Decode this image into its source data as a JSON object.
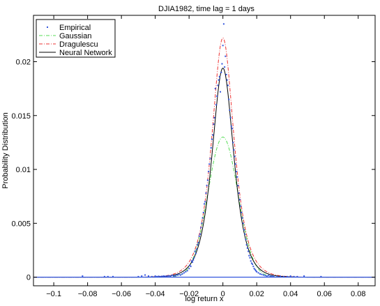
{
  "chart_data": {
    "type": "line",
    "title": "DJIA1982, time lag = 1 days",
    "xlabel": "log return x",
    "ylabel": "Probability Distribution",
    "xlim": [
      -0.112,
      0.09
    ],
    "ylim": [
      -0.0008,
      0.0243
    ],
    "x_ticks": [
      -0.1,
      -0.08,
      -0.06,
      -0.04,
      -0.02,
      0,
      0.02,
      0.04,
      0.06,
      0.08
    ],
    "x_tick_labels": [
      "−0.1",
      "−0.08",
      "−0.06",
      "−0.04",
      "−0.02",
      "0",
      "0.02",
      "0.04",
      "0.06",
      "0.08"
    ],
    "y_ticks": [
      0,
      0.005,
      0.01,
      0.015,
      0.02
    ],
    "y_tick_labels": [
      "0",
      "0.005",
      "0.01",
      "0.015",
      "0.02"
    ],
    "grid": false,
    "legend_position": "top-left",
    "series": [
      {
        "name": "Empirical",
        "style": "markers",
        "color": "#3355dd",
        "points": [
          [
            -0.0045,
            0.0175
          ],
          [
            -0.004,
            0.016
          ],
          [
            -0.0035,
            0.0168
          ],
          [
            -0.003,
            0.0178
          ],
          [
            -0.0025,
            0.0183
          ],
          [
            -0.002,
            0.0186
          ],
          [
            -0.0015,
            0.0172
          ],
          [
            -0.001,
            0.019
          ],
          [
            -0.0005,
            0.0198
          ],
          [
            0.0,
            0.0215
          ],
          [
            0.0005,
            0.0235
          ],
          [
            0.001,
            0.0195
          ],
          [
            0.0015,
            0.0205
          ],
          [
            0.002,
            0.0188
          ],
          [
            0.0025,
            0.0183
          ],
          [
            0.003,
            0.0178
          ],
          [
            0.0035,
            0.0165
          ],
          [
            0.004,
            0.0155
          ],
          [
            0.0045,
            0.0148
          ],
          [
            0.005,
            0.014
          ],
          [
            -0.005,
            0.0148
          ],
          [
            -0.0055,
            0.0142
          ],
          [
            -0.006,
            0.0132
          ],
          [
            -0.0065,
            0.0128
          ],
          [
            -0.007,
            0.012
          ],
          [
            -0.0075,
            0.011
          ],
          [
            -0.008,
            0.0105
          ],
          [
            -0.0085,
            0.0098
          ],
          [
            -0.009,
            0.009
          ],
          [
            -0.0095,
            0.0085
          ],
          [
            -0.01,
            0.0078
          ],
          [
            -0.0105,
            0.007
          ],
          [
            -0.011,
            0.0068
          ],
          [
            -0.0115,
            0.006
          ],
          [
            -0.012,
            0.0055
          ],
          [
            -0.0125,
            0.005
          ],
          [
            -0.013,
            0.0046
          ],
          [
            -0.0135,
            0.004
          ],
          [
            -0.014,
            0.0038
          ],
          [
            -0.0145,
            0.0032
          ],
          [
            -0.015,
            0.003
          ],
          [
            -0.0155,
            0.0026
          ],
          [
            -0.016,
            0.0022
          ],
          [
            -0.0165,
            0.0024
          ],
          [
            -0.017,
            0.0018
          ],
          [
            -0.0175,
            0.0016
          ],
          [
            -0.018,
            0.0014
          ],
          [
            -0.0185,
            0.0015
          ],
          [
            -0.019,
            0.001
          ],
          [
            -0.0195,
            0.0011
          ],
          [
            -0.02,
            0.0008
          ],
          [
            -0.021,
            0.0006
          ],
          [
            -0.022,
            0.0005
          ],
          [
            -0.023,
            0.0004
          ],
          [
            -0.024,
            0.0003
          ],
          [
            -0.025,
            0.0002
          ],
          [
            -0.026,
            0.00025
          ],
          [
            -0.027,
            0.0002
          ],
          [
            -0.028,
            0.00015
          ],
          [
            -0.029,
            0.0001
          ],
          [
            -0.03,
            0.00018
          ],
          [
            -0.031,
            0.0001
          ],
          [
            -0.032,
            0.00012
          ],
          [
            -0.033,
            0.0001
          ],
          [
            -0.034,
            8e-05
          ],
          [
            -0.035,
            0.0001
          ],
          [
            -0.036,
            8e-05
          ],
          [
            -0.037,
            5e-05
          ],
          [
            -0.038,
            8e-05
          ],
          [
            -0.039,
            5e-05
          ],
          [
            -0.04,
            0.0001
          ],
          [
            -0.042,
            5e-05
          ],
          [
            -0.044,
            0.0001
          ],
          [
            -0.046,
            0.0002
          ],
          [
            -0.048,
            0.0001
          ],
          [
            -0.05,
            5e-05
          ],
          [
            -0.065,
            5e-05
          ],
          [
            -0.068,
            5e-05
          ],
          [
            -0.07,
            5e-05
          ],
          [
            -0.083,
            0.0001
          ],
          [
            0.0055,
            0.0138
          ],
          [
            0.006,
            0.0125
          ],
          [
            0.0065,
            0.0118
          ],
          [
            0.007,
            0.0112
          ],
          [
            0.0075,
            0.0105
          ],
          [
            0.008,
            0.0098
          ],
          [
            0.0085,
            0.0093
          ],
          [
            0.009,
            0.0085
          ],
          [
            0.0095,
            0.0078
          ],
          [
            0.01,
            0.0072
          ],
          [
            0.0105,
            0.0066
          ],
          [
            0.011,
            0.006
          ],
          [
            0.0115,
            0.0055
          ],
          [
            0.012,
            0.005
          ],
          [
            0.0125,
            0.0044
          ],
          [
            0.013,
            0.004
          ],
          [
            0.0135,
            0.0035
          ],
          [
            0.014,
            0.003
          ],
          [
            0.0145,
            0.0027
          ],
          [
            0.015,
            0.0024
          ],
          [
            0.0155,
            0.002
          ],
          [
            0.016,
            0.0018
          ],
          [
            0.0165,
            0.0015
          ],
          [
            0.017,
            0.0013
          ],
          [
            0.0175,
            0.0012
          ],
          [
            0.018,
            0.001
          ],
          [
            0.0185,
            0.0008
          ],
          [
            0.019,
            0.0007
          ],
          [
            0.0195,
            0.0006
          ],
          [
            0.02,
            0.0005
          ],
          [
            0.021,
            0.0004
          ],
          [
            0.022,
            0.0003
          ],
          [
            0.023,
            0.00025
          ],
          [
            0.024,
            0.0002
          ],
          [
            0.025,
            0.00015
          ],
          [
            0.026,
            0.0001
          ],
          [
            0.027,
            0.00015
          ],
          [
            0.028,
            0.0001
          ],
          [
            0.029,
            8e-05
          ],
          [
            0.03,
            0.0001
          ],
          [
            0.032,
            5e-05
          ],
          [
            0.034,
            8e-05
          ],
          [
            0.036,
            5e-05
          ],
          [
            0.038,
            5e-05
          ],
          [
            0.04,
            0.0001
          ],
          [
            0.042,
            5e-05
          ],
          [
            0.044,
            5e-05
          ],
          [
            0.048,
            0.0001
          ],
          [
            0.058,
            5e-05
          ]
        ]
      },
      {
        "name": "Gaussian",
        "style": "dash-dot",
        "color": "#55dd55",
        "peak": 0.013,
        "sigma": 0.0088
      },
      {
        "name": "Dragulescu",
        "style": "dash-dot",
        "color": "#ee3333",
        "peak": 0.0222,
        "scale": 0.0058
      },
      {
        "name": "Neural Network",
        "style": "solid",
        "color": "#000000",
        "peak": 0.0194,
        "scale": 0.0062
      }
    ]
  }
}
